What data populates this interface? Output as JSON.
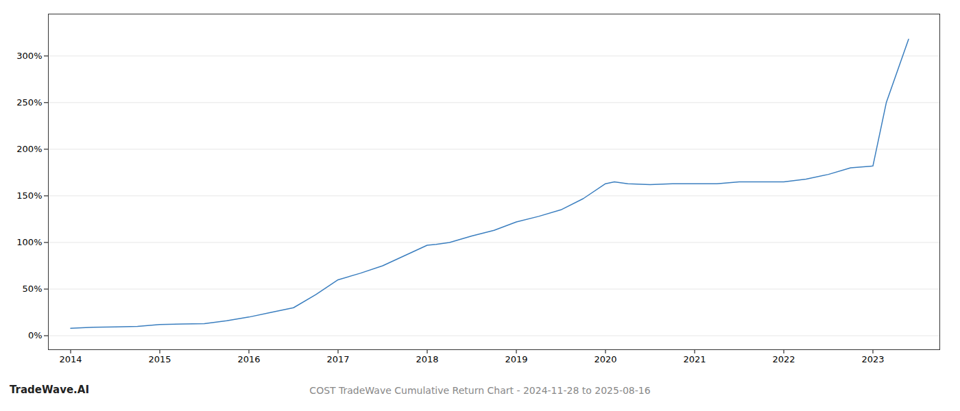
{
  "chart_data": {
    "type": "line",
    "title": "COST TradeWave Cumulative Return Chart - 2024-11-28 to 2025-08-16",
    "annotations": [
      "TradeWave.AI"
    ],
    "x": [
      2014.0,
      2014.25,
      2014.5,
      2014.75,
      2015.0,
      2015.25,
      2015.5,
      2015.75,
      2016.0,
      2016.25,
      2016.5,
      2016.75,
      2017.0,
      2017.25,
      2017.5,
      2017.75,
      2018.0,
      2018.1,
      2018.25,
      2018.5,
      2018.75,
      2019.0,
      2019.25,
      2019.5,
      2019.75,
      2020.0,
      2020.1,
      2020.25,
      2020.5,
      2020.75,
      2021.0,
      2021.25,
      2021.5,
      2021.75,
      2022.0,
      2022.25,
      2022.5,
      2022.75,
      2023.0,
      2023.15,
      2023.4
    ],
    "values": [
      8,
      9,
      9.5,
      10,
      12,
      12.5,
      13,
      16,
      20,
      25,
      30,
      44,
      60,
      67,
      75,
      86,
      97,
      98,
      100,
      107,
      113,
      122,
      128,
      135,
      147,
      163,
      165,
      163,
      162,
      163,
      163,
      163,
      165,
      165,
      165,
      168,
      173,
      180,
      182,
      250,
      318
    ],
    "color": "#3a7ebf",
    "xlim": [
      2013.75,
      2023.75
    ],
    "ylim": [
      -15,
      345
    ],
    "xticks": [
      2014,
      2015,
      2016,
      2017,
      2018,
      2019,
      2020,
      2021,
      2022,
      2023
    ],
    "yticks": [
      {
        "value": 0,
        "label": "0%"
      },
      {
        "value": 50,
        "label": "50%"
      },
      {
        "value": 100,
        "label": "100%"
      },
      {
        "value": 150,
        "label": "150%"
      },
      {
        "value": 200,
        "label": "200%"
      },
      {
        "value": 250,
        "label": "250%"
      },
      {
        "value": 300,
        "label": "300%"
      }
    ],
    "grid": "y"
  }
}
